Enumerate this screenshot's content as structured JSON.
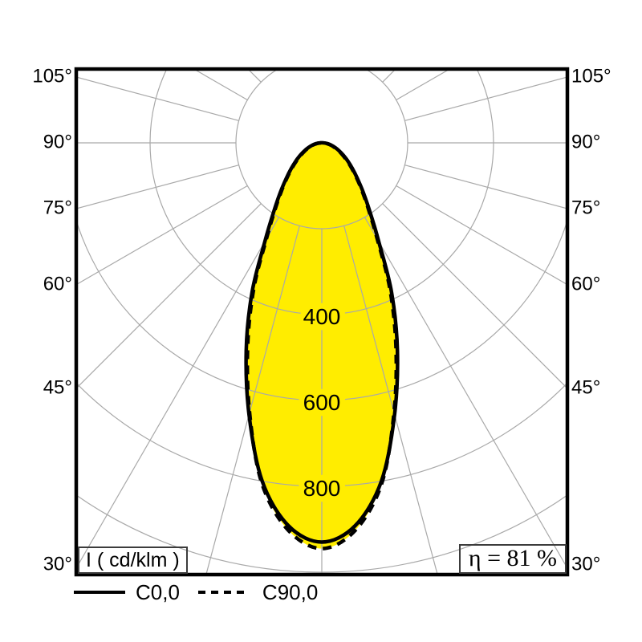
{
  "colors": {
    "fill": "#ffed00",
    "grid": "#a9a9a9",
    "curve": "#000000",
    "background": "#ffffff",
    "text": "#000000"
  },
  "badges": {
    "unit": "I ( cd/klm )",
    "efficiency": "η = 81 %"
  },
  "legend": [
    {
      "label": "C0,0",
      "style": "solid"
    },
    {
      "label": "C90,0",
      "style": "dashed"
    }
  ],
  "chart_data": {
    "type": "polar-photometric",
    "units": "cd/klm",
    "unit_label": "I ( cd/klm )",
    "efficiency_label": "η = 81 %",
    "angle_tick_labels": [
      "105°",
      "90°",
      "75°",
      "60°",
      "45°",
      "30°"
    ],
    "angle_ticks_deg": [
      105,
      90,
      75,
      60,
      45,
      30
    ],
    "spoke_step_deg": 15,
    "rings": [
      200,
      400,
      600,
      800,
      1000
    ],
    "ring_labels": [
      "400",
      "600",
      "800"
    ],
    "ring_label_values": [
      400,
      600,
      800
    ],
    "grid": true,
    "legend_position": "bottom-left",
    "series": [
      {
        "name": "C0,0",
        "line": "solid",
        "symmetric": true,
        "angles_deg": [
          0,
          5,
          10,
          15,
          20,
          25,
          30,
          35,
          40,
          45,
          50,
          55,
          60,
          65,
          70,
          75,
          80,
          85,
          90
        ],
        "values_cd_per_klm": [
          930,
          895,
          800,
          655,
          515,
          385,
          265,
          195,
          150,
          117,
          93,
          74,
          58,
          45,
          34,
          25,
          17,
          9,
          3
        ]
      },
      {
        "name": "C90,0",
        "line": "dashed",
        "symmetric": true,
        "angles_deg": [
          0,
          5,
          10,
          15,
          20,
          25,
          30,
          35,
          40,
          45,
          50,
          55,
          60,
          65,
          70,
          75,
          80,
          85,
          90
        ],
        "values_cd_per_klm": [
          945,
          905,
          805,
          650,
          505,
          375,
          258,
          190,
          146,
          114,
          90,
          71,
          55,
          43,
          32,
          23,
          15,
          8,
          2
        ]
      }
    ]
  }
}
